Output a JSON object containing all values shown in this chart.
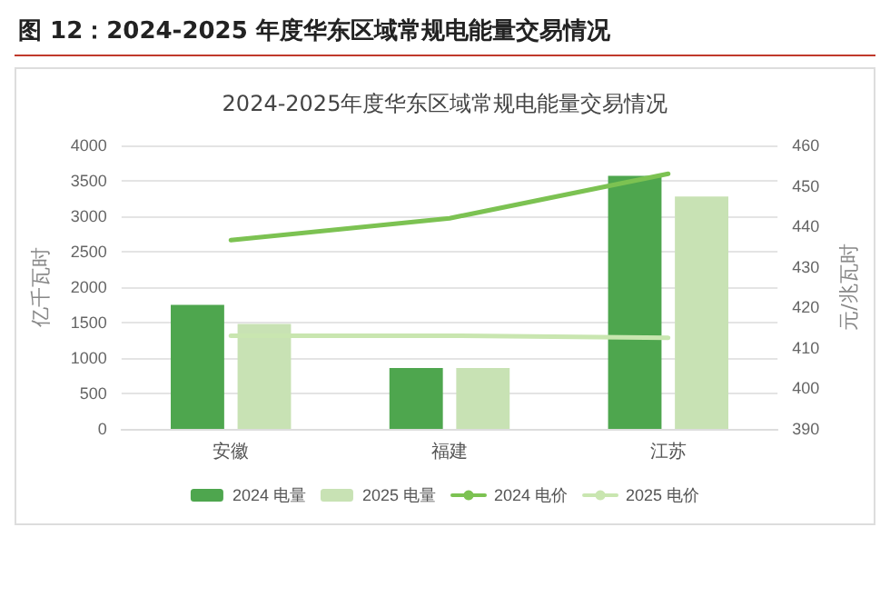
{
  "chart_data": {
    "type": "bar",
    "title": "图 12：2024-2025 年度华东区域常规电能量交易情况",
    "subtitle": "2024-2025年度华东区域常规电能量交易情况",
    "ylabel": "亿千瓦时",
    "y2label": "元/兆瓦时",
    "categories": [
      "安徽",
      "福建",
      "江苏"
    ],
    "series": [
      {
        "name": "2024 电量",
        "color": "#4ea64e",
        "values": [
          1750,
          860,
          3570
        ]
      },
      {
        "name": "2025 电量",
        "color": "#c8e2b4",
        "values": [
          1480,
          860,
          3280
        ]
      },
      {
        "name": "2024 电价",
        "type": "line",
        "axis": "y2",
        "color": "#7cc252",
        "values": [
          436.6,
          442,
          453
        ]
      },
      {
        "name": "2025 电价",
        "type": "line",
        "axis": "y2",
        "color": "#c9e6b0",
        "values": [
          413,
          413,
          412.5
        ]
      }
    ],
    "ylim": [
      0,
      4000
    ],
    "yticks": [
      0,
      500,
      1000,
      1500,
      2000,
      2500,
      3000,
      3500,
      4000
    ],
    "y2lim": [
      390,
      460
    ],
    "y2ticks": [
      390,
      400,
      410,
      420,
      430,
      440,
      450,
      460
    ],
    "grid": "y",
    "legend": "bottom",
    "marker": "none",
    "line_style": "solid"
  }
}
